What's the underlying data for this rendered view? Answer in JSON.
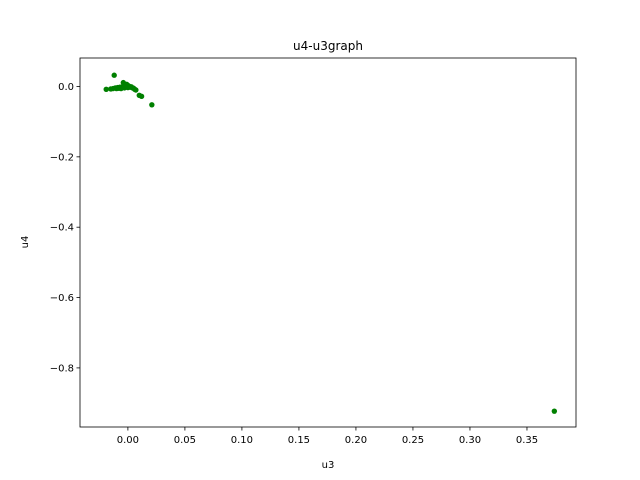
{
  "chart_data": {
    "type": "scatter",
    "title": "u4-u3graph",
    "xlabel": "u3",
    "ylabel": "u4",
    "xlim": [
      -0.042,
      0.393
    ],
    "ylim": [
      -0.968,
      0.081
    ],
    "x_ticks": [
      0.0,
      0.05,
      0.1,
      0.15,
      0.2,
      0.25,
      0.3,
      0.35
    ],
    "x_tick_labels": [
      "0.00",
      "0.05",
      "0.10",
      "0.15",
      "0.20",
      "0.25",
      "0.30",
      "0.35"
    ],
    "y_ticks": [
      0.0,
      -0.2,
      -0.4,
      -0.6,
      -0.8
    ],
    "y_tick_labels": [
      "0.0",
      "−0.2",
      "−0.4",
      "−0.6",
      "−0.8"
    ],
    "grid": false,
    "legend": null,
    "marker_color": "#008000",
    "series": [
      {
        "points": [
          {
            "x": -0.019,
            "y": -0.008
          },
          {
            "x": -0.015,
            "y": -0.007
          },
          {
            "x": -0.013,
            "y": -0.006
          },
          {
            "x": -0.012,
            "y": 0.032
          },
          {
            "x": -0.011,
            "y": -0.004
          },
          {
            "x": -0.01,
            "y": -0.006
          },
          {
            "x": -0.009,
            "y": -0.003
          },
          {
            "x": -0.008,
            "y": -0.005
          },
          {
            "x": -0.007,
            "y": -0.002
          },
          {
            "x": -0.006,
            "y": -0.006
          },
          {
            "x": -0.005,
            "y": -0.001
          },
          {
            "x": -0.004,
            "y": 0.011
          },
          {
            "x": -0.003,
            "y": 0.004
          },
          {
            "x": -0.003,
            "y": -0.004
          },
          {
            "x": -0.002,
            "y": 0.002
          },
          {
            "x": -0.001,
            "y": 0.006
          },
          {
            "x": 0.0,
            "y": -0.003
          },
          {
            "x": 0.0,
            "y": 0.003
          },
          {
            "x": 0.001,
            "y": 0.001
          },
          {
            "x": 0.002,
            "y": -0.002
          },
          {
            "x": 0.003,
            "y": -0.001
          },
          {
            "x": 0.004,
            "y": -0.004
          },
          {
            "x": 0.005,
            "y": -0.005
          },
          {
            "x": 0.006,
            "y": -0.008
          },
          {
            "x": 0.007,
            "y": -0.01
          },
          {
            "x": 0.01,
            "y": -0.025
          },
          {
            "x": 0.012,
            "y": -0.028
          },
          {
            "x": 0.021,
            "y": -0.052
          },
          {
            "x": 0.374,
            "y": -0.923
          }
        ]
      }
    ]
  }
}
